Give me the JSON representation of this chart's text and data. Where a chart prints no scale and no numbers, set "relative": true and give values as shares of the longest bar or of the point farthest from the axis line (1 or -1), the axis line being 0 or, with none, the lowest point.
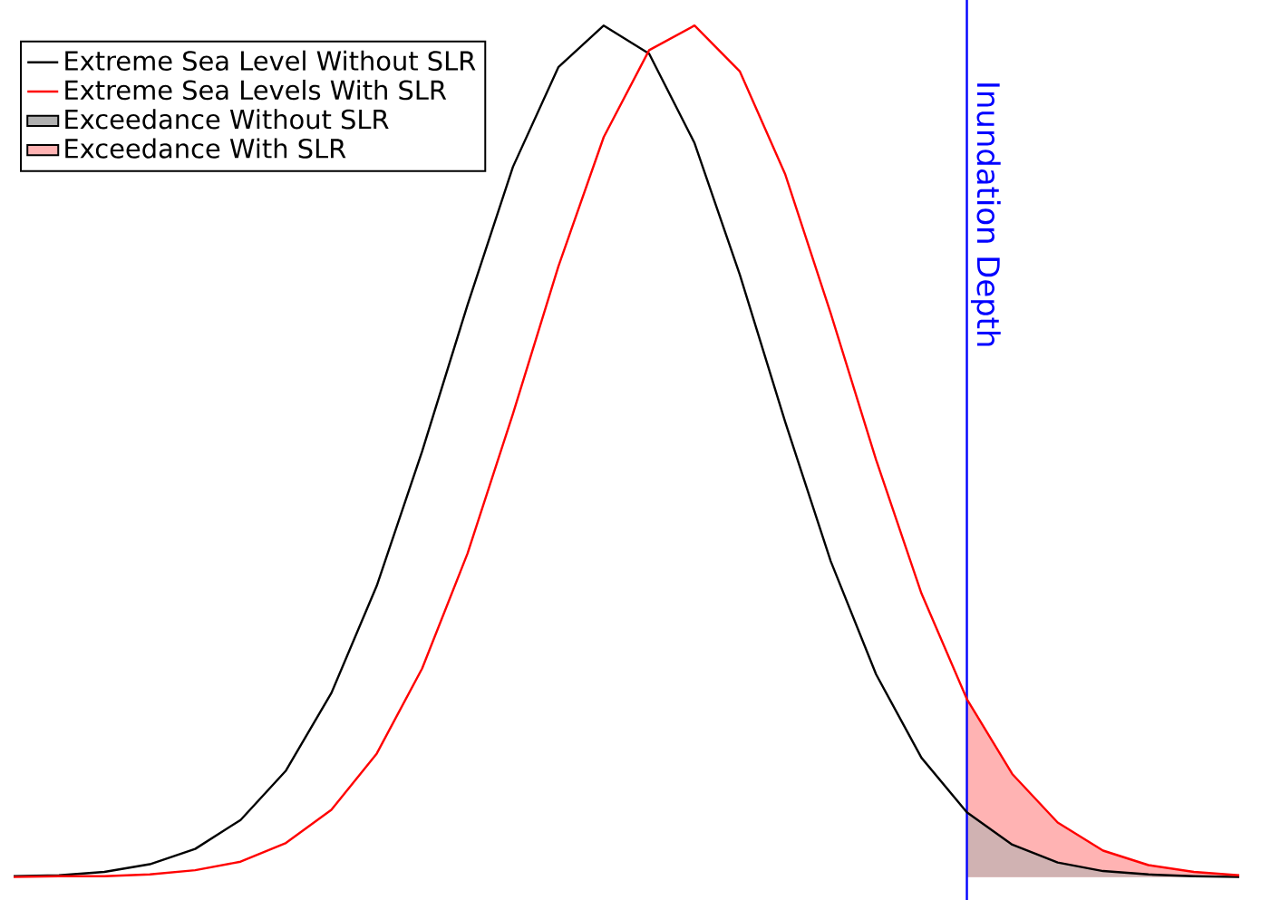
{
  "chart_data": [
    {
      "type": "line",
      "relative": true,
      "marker": "none",
      "line_style": "solid",
      "categories": [
        null,
        null,
        null,
        null,
        null,
        null,
        null,
        null,
        null,
        null,
        null,
        null,
        null,
        null,
        null,
        null,
        null,
        null,
        null,
        null,
        null,
        null,
        null,
        null,
        null,
        null,
        null,
        null
      ],
      "series": [
        {
          "name": "Extreme Sea Level Without SLR",
          "color": "#000000",
          "values": [
            0.001,
            0.002,
            0.006,
            0.015,
            0.033,
            0.067,
            0.125,
            0.216,
            0.342,
            0.5,
            0.672,
            0.834,
            0.951,
            1.0,
            0.967,
            0.862,
            0.707,
            0.534,
            0.371,
            0.238,
            0.14,
            0.076,
            0.038,
            0.017,
            0.007,
            0.003,
            0.001,
            0.0
          ]
        },
        {
          "name": "Extreme Sea Levels With SLR",
          "color": "#ff0000",
          "values": [
            0.0,
            0.001,
            0.001,
            0.003,
            0.008,
            0.018,
            0.04,
            0.079,
            0.145,
            0.245,
            0.38,
            0.544,
            0.717,
            0.869,
            0.971,
            1.0,
            0.946,
            0.825,
            0.662,
            0.49,
            0.333,
            0.209,
            0.121,
            0.064,
            0.031,
            0.014,
            0.006,
            0.002
          ]
        }
      ]
    },
    {
      "type": "area",
      "relative": true,
      "legend": "top left",
      "categories": [
        null,
        null,
        null,
        null,
        null,
        null,
        null
      ],
      "series": [
        {
          "name": "Exceedance Without SLR",
          "color": "#b0b0b0",
          "values": [
            0.364,
            0.182,
            0.081,
            0.033,
            0.014,
            0.005,
            0.0
          ]
        },
        {
          "name": "Exceedance With SLR",
          "color": "#ffb3b3",
          "values": [
            1.0,
            0.579,
            0.306,
            0.148,
            0.067,
            0.029,
            0.01
          ]
        }
      ],
      "annotations": [
        "Inundation Depth"
      ]
    }
  ]
}
